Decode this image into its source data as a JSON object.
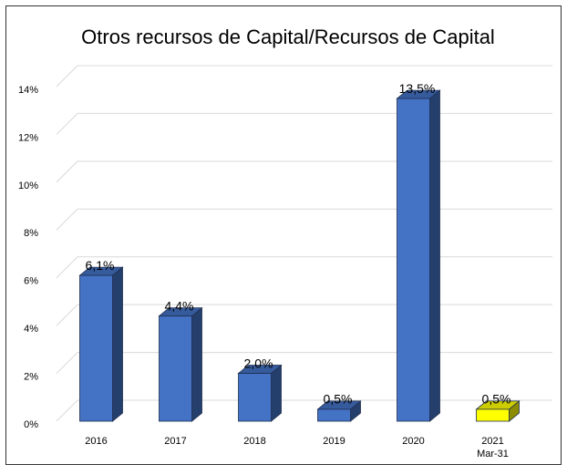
{
  "chart_data": {
    "type": "bar3d",
    "title": "Otros recursos de Capital/Recursos de Capital",
    "categories": [
      "2016",
      "2017",
      "2018",
      "2019",
      "2020",
      "2021\nMar-31"
    ],
    "values": [
      6.1,
      4.4,
      2.0,
      0.5,
      13.5,
      0.5
    ],
    "value_labels": [
      "6,1%",
      "4,4%",
      "2,0%",
      "0,5%",
      "13,5%",
      "0,5%"
    ],
    "colors": [
      "#4472c4",
      "#4472c4",
      "#4472c4",
      "#4472c4",
      "#4472c4",
      "#ffff00"
    ],
    "ylim": [
      0,
      14
    ],
    "yticks": [
      {
        "value": 0,
        "label": "0%"
      },
      {
        "value": 2,
        "label": "2%"
      },
      {
        "value": 4,
        "label": "4%"
      },
      {
        "value": 6,
        "label": "6%"
      },
      {
        "value": 8,
        "label": "8%"
      },
      {
        "value": 10,
        "label": "10%"
      },
      {
        "value": 12,
        "label": "12%"
      },
      {
        "value": 14,
        "label": "14%"
      }
    ],
    "grid": true
  }
}
